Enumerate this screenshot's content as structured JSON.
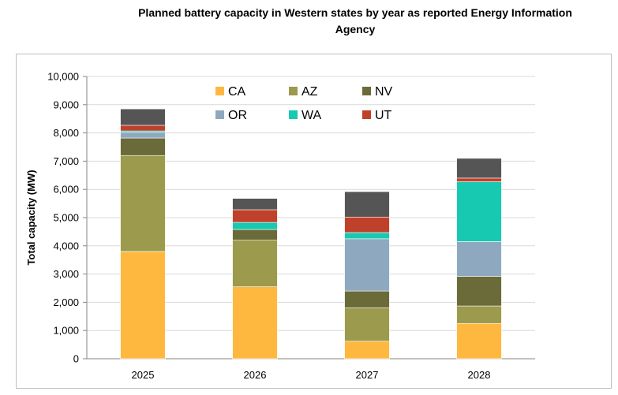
{
  "chart_data": {
    "type": "bar",
    "stacked": true,
    "title": "Planned battery capacity in Western states by year as reported Energy Information Agency",
    "title_lines": [
      "Planned battery capacity in Western states by year as reported Energy Information",
      "Agency"
    ],
    "xlabel": "",
    "ylabel": "Total capacity (MW)",
    "ylim": [
      0,
      10000
    ],
    "yticks": [
      0,
      1000,
      2000,
      3000,
      4000,
      5000,
      6000,
      7000,
      8000,
      9000,
      10000
    ],
    "ytick_labels": [
      "0",
      "1,000",
      "2,000",
      "3,000",
      "4,000",
      "5,000",
      "6,000",
      "7,000",
      "8,000",
      "9,000",
      "10,000"
    ],
    "categories": [
      "2025",
      "2026",
      "2027",
      "2028"
    ],
    "legend_position": "top-center",
    "series": [
      {
        "name": "CA",
        "color": "#FFB83F",
        "values": [
          3800,
          2550,
          620,
          1250
        ]
      },
      {
        "name": "AZ",
        "color": "#9C9A4C",
        "values": [
          3400,
          1650,
          1180,
          620
        ]
      },
      {
        "name": "NV",
        "color": "#6B6B3A",
        "values": [
          620,
          380,
          600,
          1050
        ]
      },
      {
        "name": "OR",
        "color": "#8EA9BF",
        "values": [
          200,
          0,
          1850,
          1230
        ]
      },
      {
        "name": "WA",
        "color": "#16C9B0",
        "values": [
          50,
          250,
          220,
          2120
        ]
      },
      {
        "name": "UT",
        "color": "#C0412B",
        "values": [
          200,
          450,
          550,
          130
        ]
      },
      {
        "name": "",
        "color": "#555555",
        "values": [
          580,
          400,
          900,
          700
        ]
      }
    ]
  }
}
